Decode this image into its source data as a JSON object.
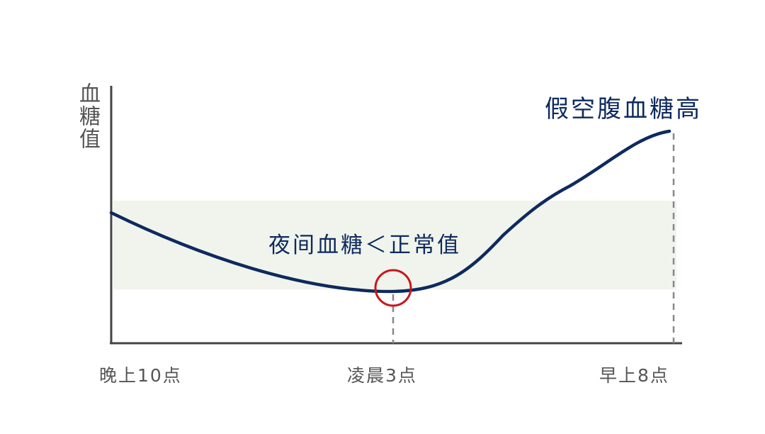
{
  "diagram": {
    "y_axis_label": "血糖值",
    "annotation_high": "假空腹血糖高",
    "annotation_low": "夜间血糖＜正常值",
    "x_ticks": [
      "晚上10点",
      "凌晨3点",
      "早上8点"
    ],
    "colors": {
      "curve": "#0e2a5e",
      "normal_band": "#f0f4ec",
      "axis": "#444444",
      "highlight_circle": "#c8161d",
      "text_dark": "#0e2a5e",
      "text_gray": "#555555"
    }
  }
}
